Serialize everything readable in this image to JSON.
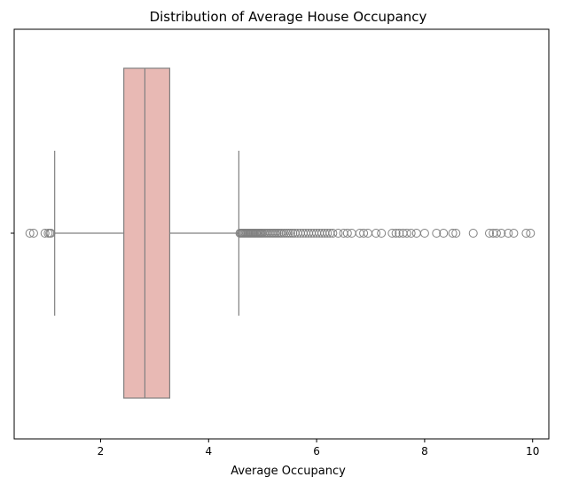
{
  "chart_data": {
    "type": "box",
    "title": "Distribution of Average House Occupancy",
    "xlabel": "Average Occupancy",
    "ylabel": "",
    "xlim": [
      0.4,
      10.3
    ],
    "xticks": [
      2,
      4,
      6,
      8,
      10
    ],
    "grid": false,
    "box_color": "#e8b9b4",
    "line_color": "#808080",
    "stats": {
      "whisker_low": 1.15,
      "q1": 2.43,
      "median": 2.82,
      "q3": 3.28,
      "whisker_high": 4.56
    },
    "outliers": [
      0.69,
      0.76,
      0.97,
      1.03,
      1.06,
      1.08,
      4.58,
      4.6,
      4.62,
      4.64,
      4.66,
      4.68,
      4.7,
      4.72,
      4.74,
      4.76,
      4.78,
      4.8,
      4.82,
      4.84,
      4.86,
      4.88,
      4.9,
      4.92,
      4.94,
      4.96,
      4.98,
      5.0,
      5.03,
      5.06,
      5.09,
      5.12,
      5.15,
      5.18,
      5.21,
      5.24,
      5.27,
      5.3,
      5.33,
      5.36,
      5.4,
      5.44,
      5.48,
      5.52,
      5.56,
      5.6,
      5.65,
      5.7,
      5.75,
      5.8,
      5.85,
      5.9,
      5.95,
      6.0,
      6.05,
      6.1,
      6.15,
      6.2,
      6.25,
      6.3,
      6.4,
      6.5,
      6.57,
      6.65,
      6.8,
      6.87,
      6.95,
      7.1,
      7.2,
      7.4,
      7.47,
      7.53,
      7.6,
      7.67,
      7.75,
      7.85,
      8.0,
      8.22,
      8.35,
      8.52,
      8.58,
      8.9,
      9.2,
      9.27,
      9.33,
      9.42,
      9.55,
      9.65,
      9.88,
      9.96
    ]
  }
}
